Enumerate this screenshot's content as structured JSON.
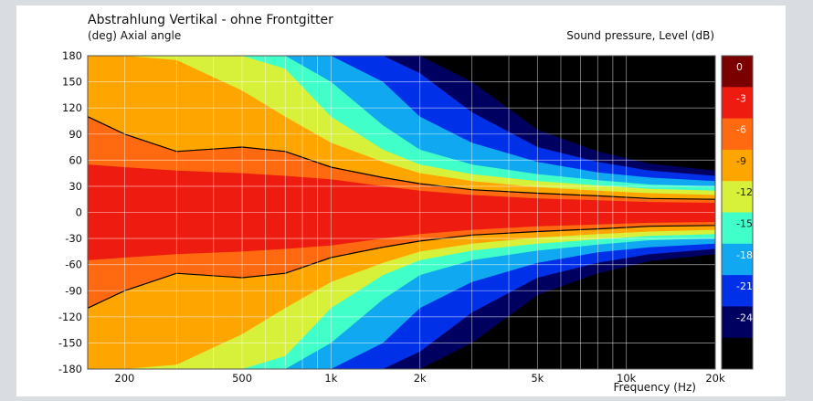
{
  "chart_data": {
    "type": "heatmap",
    "title": "Abstrahlung Vertikal - ohne Frontgitter",
    "ylabel": "(deg)  Axial angle",
    "colorbar_label": "Sound pressure, Level  (dB)",
    "xlabel": "Frequency  (Hz)",
    "x_scale": "log",
    "xlim": [
      150,
      20000
    ],
    "ylim": [
      -180,
      180
    ],
    "x_tick_values": [
      200,
      500,
      1000,
      2000,
      5000,
      10000,
      20000
    ],
    "x_tick_labels": [
      "200",
      "500",
      "1k",
      "2k",
      "5k",
      "10k",
      "20k"
    ],
    "y_ticks": [
      180,
      150,
      120,
      90,
      60,
      30,
      0,
      -30,
      -60,
      -90,
      -120,
      -150,
      -180
    ],
    "colorbar": {
      "levels": [
        0,
        -3,
        -6,
        -9,
        -12,
        -15,
        -18,
        -21,
        -24
      ],
      "colors": [
        "#7a0000",
        "#ee1c10",
        "#ff6a10",
        "#ffa500",
        "#d7f03a",
        "#40ffc8",
        "#10a8f0",
        "#0030e8",
        "#000060",
        "#000000"
      ]
    },
    "contour_half_width_deg": [
      {
        "level": -3,
        "freq": [
          150,
          200,
          300,
          500,
          700,
          1000,
          1500,
          2000,
          3000,
          5000,
          8000,
          12000,
          20000
        ],
        "angle": [
          55,
          52,
          48,
          45,
          42,
          38,
          30,
          25,
          20,
          16,
          14,
          12,
          11
        ]
      },
      {
        "level": -6,
        "freq": [
          150,
          200,
          300,
          500,
          700,
          1000,
          1500,
          2000,
          3000,
          5000,
          8000,
          12000,
          20000
        ],
        "angle": [
          110,
          90,
          70,
          75,
          70,
          52,
          40,
          33,
          26,
          22,
          19,
          16,
          15
        ]
      },
      {
        "level": -9,
        "freq": [
          150,
          200,
          300,
          500,
          700,
          1000,
          1500,
          2000,
          3000,
          5000,
          8000,
          12000,
          20000
        ],
        "angle": [
          180,
          180,
          175,
          140,
          110,
          80,
          58,
          45,
          36,
          29,
          25,
          22,
          20
        ]
      },
      {
        "level": -12,
        "freq": [
          150,
          200,
          300,
          500,
          700,
          1000,
          1500,
          2000,
          3000,
          5000,
          8000,
          12000,
          20000
        ],
        "angle": [
          180,
          180,
          180,
          180,
          165,
          110,
          72,
          55,
          44,
          36,
          31,
          27,
          25
        ]
      },
      {
        "level": -15,
        "freq": [
          150,
          200,
          300,
          500,
          700,
          1000,
          1500,
          2000,
          3000,
          5000,
          8000,
          12000,
          20000
        ],
        "angle": [
          180,
          180,
          180,
          180,
          180,
          150,
          100,
          72,
          55,
          44,
          37,
          32,
          30
        ]
      },
      {
        "level": -18,
        "freq": [
          150,
          200,
          300,
          500,
          700,
          1000,
          1500,
          2000,
          3000,
          5000,
          8000,
          12000,
          20000
        ],
        "angle": [
          180,
          180,
          180,
          180,
          180,
          180,
          150,
          110,
          80,
          58,
          46,
          40,
          36
        ]
      },
      {
        "level": -21,
        "freq": [
          150,
          200,
          300,
          500,
          700,
          1000,
          1500,
          2000,
          3000,
          5000,
          8000,
          12000,
          20000
        ],
        "angle": [
          180,
          180,
          180,
          180,
          180,
          180,
          180,
          160,
          115,
          75,
          58,
          48,
          42
        ]
      },
      {
        "level": -24,
        "freq": [
          150,
          200,
          300,
          500,
          700,
          1000,
          1500,
          2000,
          3000,
          5000,
          8000,
          12000,
          20000
        ],
        "angle": [
          180,
          180,
          180,
          180,
          180,
          180,
          180,
          180,
          150,
          95,
          70,
          56,
          48
        ]
      }
    ],
    "grid": true
  }
}
